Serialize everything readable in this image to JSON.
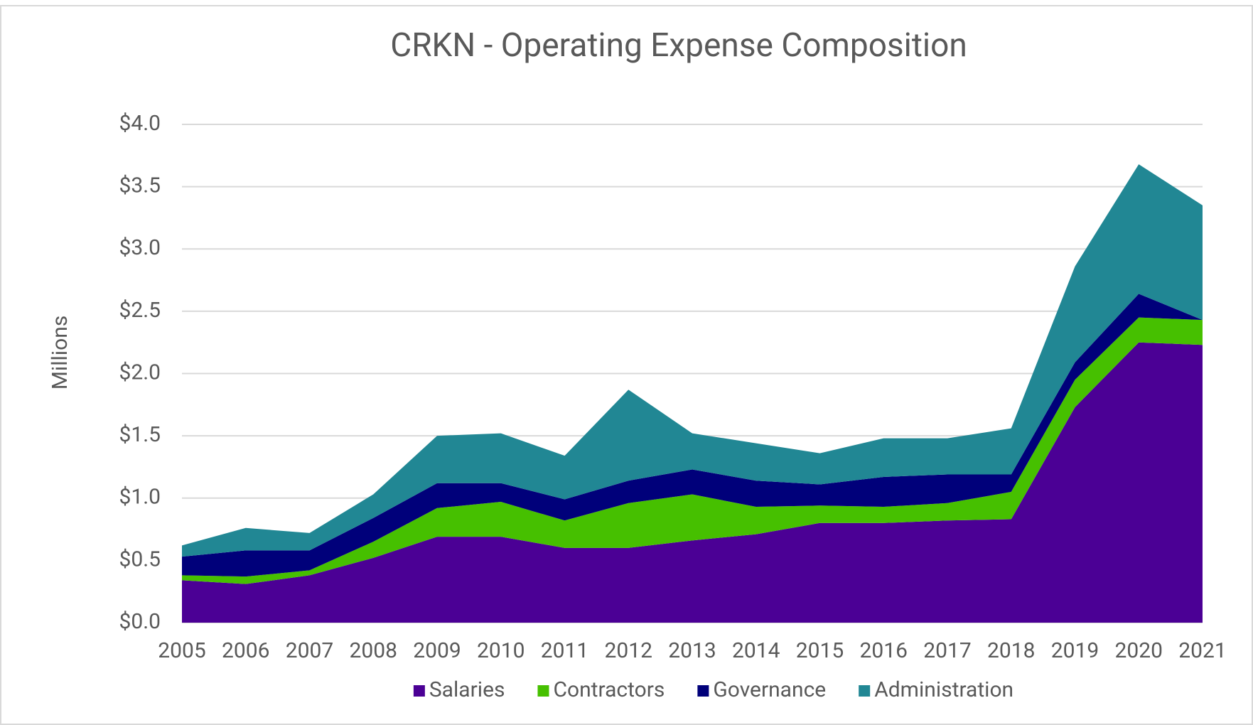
{
  "chart_data": {
    "type": "stacked_area",
    "title": "CRKN - Operating Expense Composition",
    "y_label": "Millions",
    "categories": [
      "2005",
      "2006",
      "2007",
      "2008",
      "2009",
      "2010",
      "2011",
      "2012",
      "2013",
      "2014",
      "2015",
      "2016",
      "2017",
      "2018",
      "2019",
      "2020",
      "2021"
    ],
    "series": [
      {
        "name": "Salaries",
        "color": "#4b0095",
        "values": [
          0.34,
          0.31,
          0.38,
          0.52,
          0.69,
          0.69,
          0.6,
          0.6,
          0.66,
          0.71,
          0.8,
          0.8,
          0.82,
          0.83,
          1.73,
          2.25,
          2.23
        ]
      },
      {
        "name": "Contractors",
        "color": "#46c000",
        "values": [
          0.04,
          0.06,
          0.04,
          0.13,
          0.23,
          0.28,
          0.22,
          0.36,
          0.37,
          0.22,
          0.14,
          0.13,
          0.14,
          0.22,
          0.22,
          0.2,
          0.2
        ]
      },
      {
        "name": "Governance",
        "color": "#00007a",
        "values": [
          0.15,
          0.21,
          0.16,
          0.19,
          0.2,
          0.15,
          0.17,
          0.18,
          0.2,
          0.21,
          0.17,
          0.24,
          0.23,
          0.14,
          0.14,
          0.19,
          0.0
        ]
      },
      {
        "name": "Administration",
        "color": "#218794",
        "values": [
          0.09,
          0.18,
          0.14,
          0.19,
          0.38,
          0.4,
          0.35,
          0.73,
          0.29,
          0.3,
          0.25,
          0.31,
          0.29,
          0.37,
          0.77,
          1.04,
          0.92
        ]
      }
    ],
    "ylim": [
      0,
      4
    ],
    "yticks": [
      {
        "value": 0,
        "label": "$0.0"
      },
      {
        "value": 0.5,
        "label": "$0.5"
      },
      {
        "value": 1,
        "label": "$1.0"
      },
      {
        "value": 1.5,
        "label": "$1.5"
      },
      {
        "value": 2,
        "label": "$2.0"
      },
      {
        "value": 2.5,
        "label": "$2.5"
      },
      {
        "value": 3,
        "label": "$3.0"
      },
      {
        "value": 3.5,
        "label": "$3.5"
      },
      {
        "value": 4,
        "label": "$4.0"
      }
    ],
    "grid": true,
    "legend": "bottom"
  }
}
